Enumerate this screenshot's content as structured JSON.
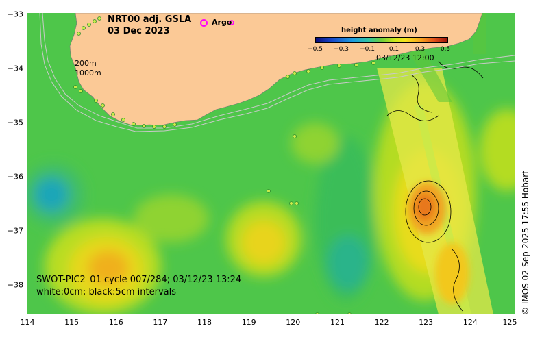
{
  "title": {
    "product": "NRT00 adj. GSLA",
    "date": "03 Dec 2023"
  },
  "argo_legend": {
    "marker": "o",
    "label": "Argo",
    "color": "#ff00ff"
  },
  "depth_labels": [
    "200m",
    "1000m"
  ],
  "swath_time": "03/12/23 12:00",
  "swot_caption": {
    "line1": "SWOT-PIC2_01 cycle 007/284; 03/12/23 13:24",
    "line2": "white:0cm; black:5cm intervals"
  },
  "colorbar": {
    "title": "height anomaly (m)",
    "ticks": [
      "−0.5",
      "−0.3",
      "−0.1",
      "0.1",
      "0.3",
      "0.5"
    ]
  },
  "axes": {
    "x_ticks": [
      "114",
      "115",
      "116",
      "117",
      "118",
      "119",
      "120",
      "121",
      "122",
      "123",
      "124",
      "125"
    ],
    "y_ticks": [
      "−33",
      "−34",
      "−35",
      "−36",
      "−37",
      "−38"
    ]
  },
  "credit": "© IMOS 02-Sep-2025 17:55 Hobart",
  "colors": {
    "land": "#fbc996",
    "ocean_base": "#4ec64a",
    "positive_high": "#ef8a1a",
    "positive_mid": "#f2d21a",
    "negative": "#2ab48a",
    "argo": "#ff00ff"
  }
}
